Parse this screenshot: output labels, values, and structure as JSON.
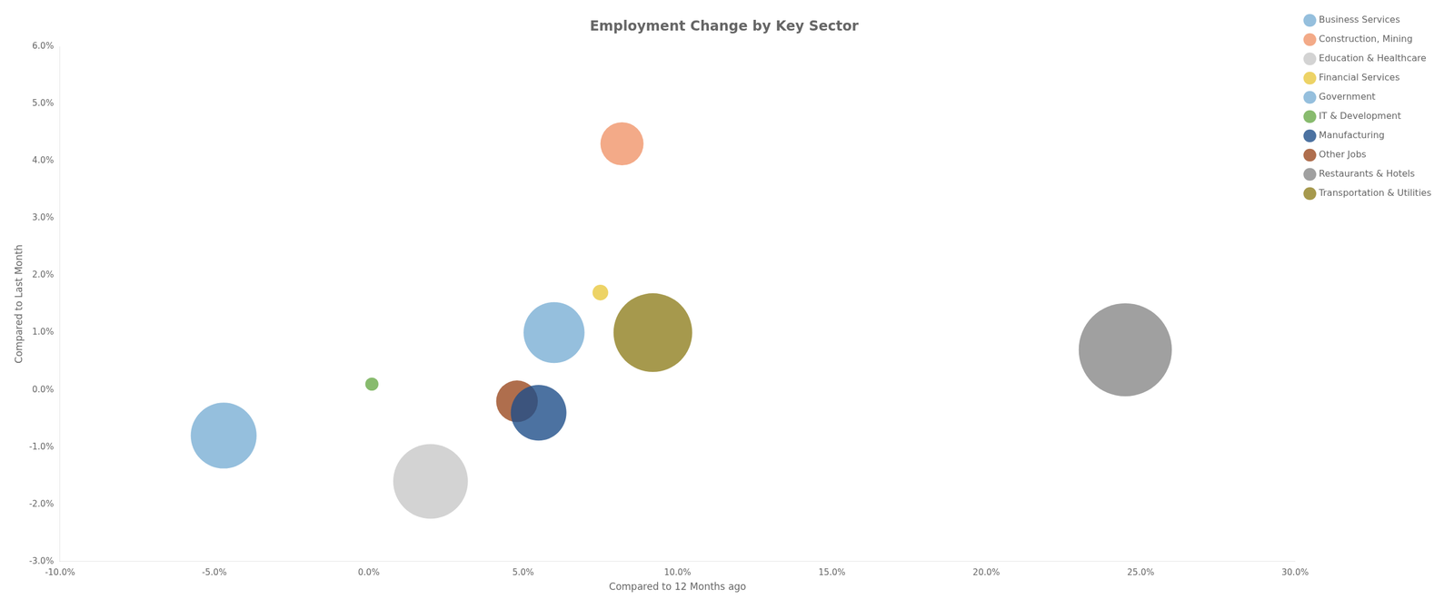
{
  "chart_data": {
    "type": "bubble",
    "title": "Employment Change by Key Sector",
    "xlabel": "Compared to 12 Months ago",
    "ylabel": "Compared to Last Month",
    "xlim": [
      -0.1,
      0.3
    ],
    "ylim": [
      -0.03,
      0.06
    ],
    "xticks": [
      {
        "value": -0.1,
        "label": "-10.0%"
      },
      {
        "value": -0.05,
        "label": "-5.0%"
      },
      {
        "value": 0.0,
        "label": "0.0%"
      },
      {
        "value": 0.05,
        "label": "5.0%"
      },
      {
        "value": 0.1,
        "label": "10.0%"
      },
      {
        "value": 0.15,
        "label": "15.0%"
      },
      {
        "value": 0.2,
        "label": "20.0%"
      },
      {
        "value": 0.25,
        "label": "25.0%"
      },
      {
        "value": 0.3,
        "label": "30.0%"
      }
    ],
    "yticks": [
      {
        "value": -0.03,
        "label": "-3.0%"
      },
      {
        "value": -0.02,
        "label": "-2.0%"
      },
      {
        "value": -0.01,
        "label": "-1.0%"
      },
      {
        "value": 0.0,
        "label": "0.0%"
      },
      {
        "value": 0.01,
        "label": "1.0%"
      },
      {
        "value": 0.02,
        "label": "2.0%"
      },
      {
        "value": 0.03,
        "label": "3.0%"
      },
      {
        "value": 0.04,
        "label": "4.0%"
      },
      {
        "value": 0.05,
        "label": "5.0%"
      },
      {
        "value": 0.06,
        "label": "6.0%"
      }
    ],
    "grid": false,
    "legend": "right",
    "series": [
      {
        "name": "Business Services",
        "color": "#7bafd4",
        "x": [
          -0.047
        ],
        "y": [
          -0.008
        ],
        "size": [
          7000
        ]
      },
      {
        "name": "Construction, Mining",
        "color": "#f0956a",
        "x": [
          0.082
        ],
        "y": [
          0.043
        ],
        "size": [
          3000
        ]
      },
      {
        "name": "Education & Healthcare",
        "color": "#c8c8c8",
        "x": [
          0.02
        ],
        "y": [
          -0.016
        ],
        "size": [
          9000
        ]
      },
      {
        "name": "Financial Services",
        "color": "#e8c840",
        "x": [
          0.075
        ],
        "y": [
          0.017
        ],
        "size": [
          400
        ]
      },
      {
        "name": "Government",
        "color": "#7bafd4",
        "x": [
          0.06
        ],
        "y": [
          0.01
        ],
        "size": [
          6000
        ]
      },
      {
        "name": "IT & Development",
        "color": "#6aaa4a",
        "x": [
          0.001
        ],
        "y": [
          0.001
        ],
        "size": [
          280
        ]
      },
      {
        "name": "Manufacturing",
        "color": "#1f4f8a",
        "x": [
          0.055
        ],
        "y": [
          -0.004
        ],
        "size": [
          5000
        ]
      },
      {
        "name": "Other Jobs",
        "color": "#9b4a20",
        "x": [
          0.048
        ],
        "y": [
          -0.002
        ],
        "size": [
          2800
        ]
      },
      {
        "name": "Restaurants & Hotels",
        "color": "#888888",
        "x": [
          0.245
        ],
        "y": [
          0.007
        ],
        "size": [
          14000
        ]
      },
      {
        "name": "Transportation & Utilities",
        "color": "#908020",
        "x": [
          0.092
        ],
        "y": [
          0.01
        ],
        "size": [
          10000
        ]
      }
    ]
  }
}
